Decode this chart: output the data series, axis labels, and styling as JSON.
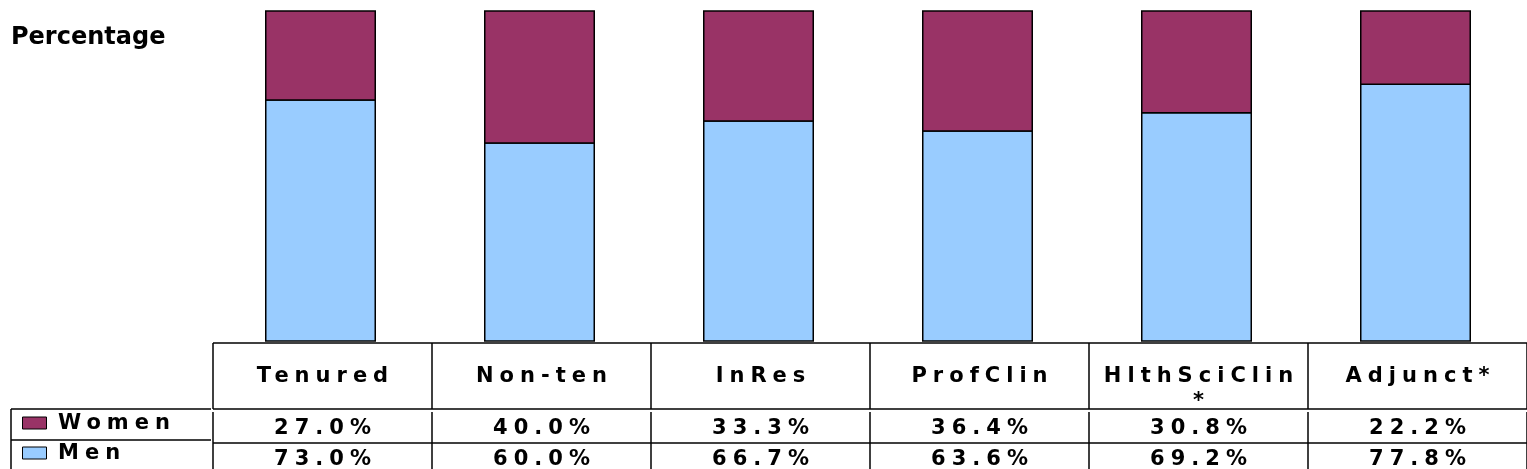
{
  "chart_data": {
    "type": "bar",
    "stacked": true,
    "ylabel": "Percentage",
    "legend": "bottom left",
    "categories": [
      "Tenured",
      "Non-ten",
      "InRes",
      "ProfClin",
      "HlthSciClin*",
      "Adjunct*"
    ],
    "series": [
      {
        "name": "Men",
        "color": "#99ccff",
        "values": [
          73.0,
          60.0,
          66.7,
          63.6,
          69.2,
          77.8
        ],
        "value_labels": [
          "73.0%",
          "60.0%",
          "66.7%",
          "63.6%",
          "69.2%",
          "77.8%"
        ]
      },
      {
        "name": "Women",
        "color": "#993366",
        "values": [
          27.0,
          40.0,
          33.3,
          36.4,
          30.8,
          22.2
        ],
        "value_labels": [
          "27.0%",
          "40.0%",
          "33.3%",
          "36.4%",
          "30.8%",
          "22.2%"
        ]
      }
    ]
  }
}
